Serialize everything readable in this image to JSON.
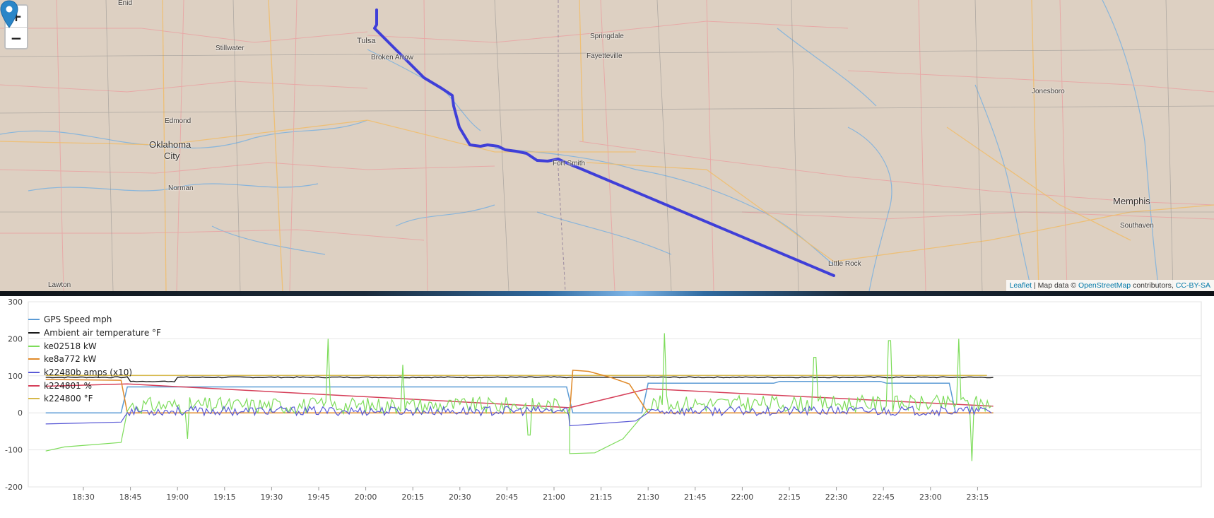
{
  "map": {
    "zoom_in_label": "+",
    "zoom_out_label": "−",
    "cities": [
      {
        "name": "Enid",
        "size": "small"
      },
      {
        "name": "Stillwater",
        "size": "small"
      },
      {
        "name": "Tulsa",
        "size": "mid"
      },
      {
        "name": "Broken Arrow",
        "size": "small"
      },
      {
        "name": "Springdale",
        "size": "small"
      },
      {
        "name": "Fayetteville",
        "size": "small"
      },
      {
        "name": "Edmond",
        "size": "small"
      },
      {
        "name": "Oklahoma",
        "size": "big"
      },
      {
        "name": "City",
        "size": "big"
      },
      {
        "name": "Norman",
        "size": "small"
      },
      {
        "name": "Fort Smith",
        "size": "small"
      },
      {
        "name": "Jonesboro",
        "size": "small"
      },
      {
        "name": "Memphis",
        "size": "big"
      },
      {
        "name": "Southaven",
        "size": "small"
      },
      {
        "name": "Little Rock",
        "size": "small"
      },
      {
        "name": "Lawton",
        "size": "small"
      }
    ],
    "attribution": {
      "leaflet": "Leaflet",
      "sep": " | Map data © ",
      "osm": "OpenStreetMap",
      "contrib": " contributors, ",
      "license": "CC-BY-SA"
    },
    "colors": {
      "route": "#3f3fd8",
      "land": "#ddd0c2",
      "water": "#5a9fd6",
      "road": "#e8a0a0",
      "highway": "#f0c070"
    }
  },
  "chart_data": {
    "type": "line",
    "y_ticks": [
      "300",
      "200",
      "100",
      "0",
      "-100",
      "-200"
    ],
    "x_ticks": [
      "18:30",
      "18:45",
      "19:00",
      "19:15",
      "19:30",
      "19:45",
      "20:00",
      "20:15",
      "20:30",
      "20:45",
      "21:00",
      "21:15",
      "21:30",
      "21:45",
      "22:00",
      "22:15",
      "22:30",
      "22:45",
      "23:00",
      "23:15"
    ],
    "ylim": [
      -200,
      300
    ],
    "series": [
      {
        "name": "GPS Speed mph",
        "color": "#5b9bd5"
      },
      {
        "name": "Ambient air temperature °F",
        "color": "#1a1a1a"
      },
      {
        "name": "ke02518 kW",
        "color": "#7ddc5a"
      },
      {
        "name": "ke8a772 kW",
        "color": "#e08a2a"
      },
      {
        "name": "k22480b amps (x10)",
        "color": "#5a5ad6"
      },
      {
        "name": "k224801 %",
        "color": "#d6405a"
      },
      {
        "name": "k224800 °F",
        "color": "#d6b84a"
      }
    ],
    "grid": true,
    "legend_position": "top-left"
  }
}
